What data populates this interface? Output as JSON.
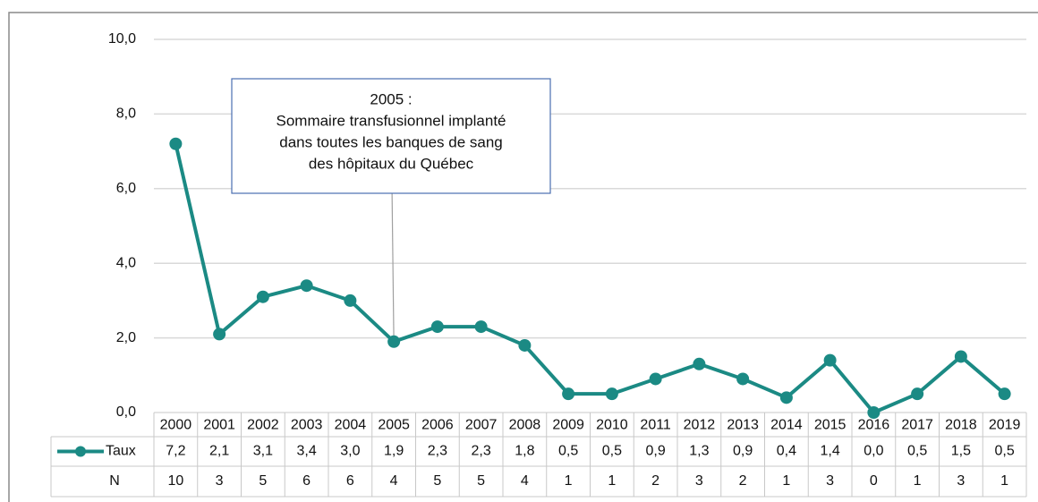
{
  "chart_data": {
    "type": "line",
    "categories": [
      "2000",
      "2001",
      "2002",
      "2003",
      "2004",
      "2005",
      "2006",
      "2007",
      "2008",
      "2009",
      "2010",
      "2011",
      "2012",
      "2013",
      "2014",
      "2015",
      "2016",
      "2017",
      "2018",
      "2019"
    ],
    "series": [
      {
        "name": "Taux",
        "color": "#1b8a84",
        "values": [
          7.2,
          2.1,
          3.1,
          3.4,
          3.0,
          1.9,
          2.3,
          2.3,
          1.8,
          0.5,
          0.5,
          0.9,
          1.3,
          0.9,
          0.4,
          1.4,
          0.0,
          0.5,
          1.5,
          0.5
        ],
        "value_labels": [
          "7,2",
          "2,1",
          "3,1",
          "3,4",
          "3,0",
          "1,9",
          "2,3",
          "2,3",
          "1,8",
          "0,5",
          "0,5",
          "0,9",
          "1,3",
          "0,9",
          "0,4",
          "1,4",
          "0,0",
          "0,5",
          "1,5",
          "0,5"
        ]
      }
    ],
    "n_row": {
      "name": "N",
      "values": [
        10,
        3,
        5,
        6,
        6,
        4,
        5,
        5,
        4,
        1,
        1,
        2,
        3,
        2,
        1,
        3,
        0,
        1,
        3,
        1
      ]
    },
    "ylim": [
      0,
      10
    ],
    "yticks": [
      {
        "value": 0,
        "label": "0,0"
      },
      {
        "value": 2,
        "label": "2,0"
      },
      {
        "value": 4,
        "label": "4,0"
      },
      {
        "value": 6,
        "label": "6,0"
      },
      {
        "value": 8,
        "label": "8,0"
      },
      {
        "value": 10,
        "label": "10,0"
      }
    ],
    "grid": true,
    "annotation": {
      "lines": [
        "2005 :",
        "Sommaire transfusionnel implanté",
        "dans toutes les banques de sang",
        "des hôpitaux du Québec"
      ]
    }
  }
}
